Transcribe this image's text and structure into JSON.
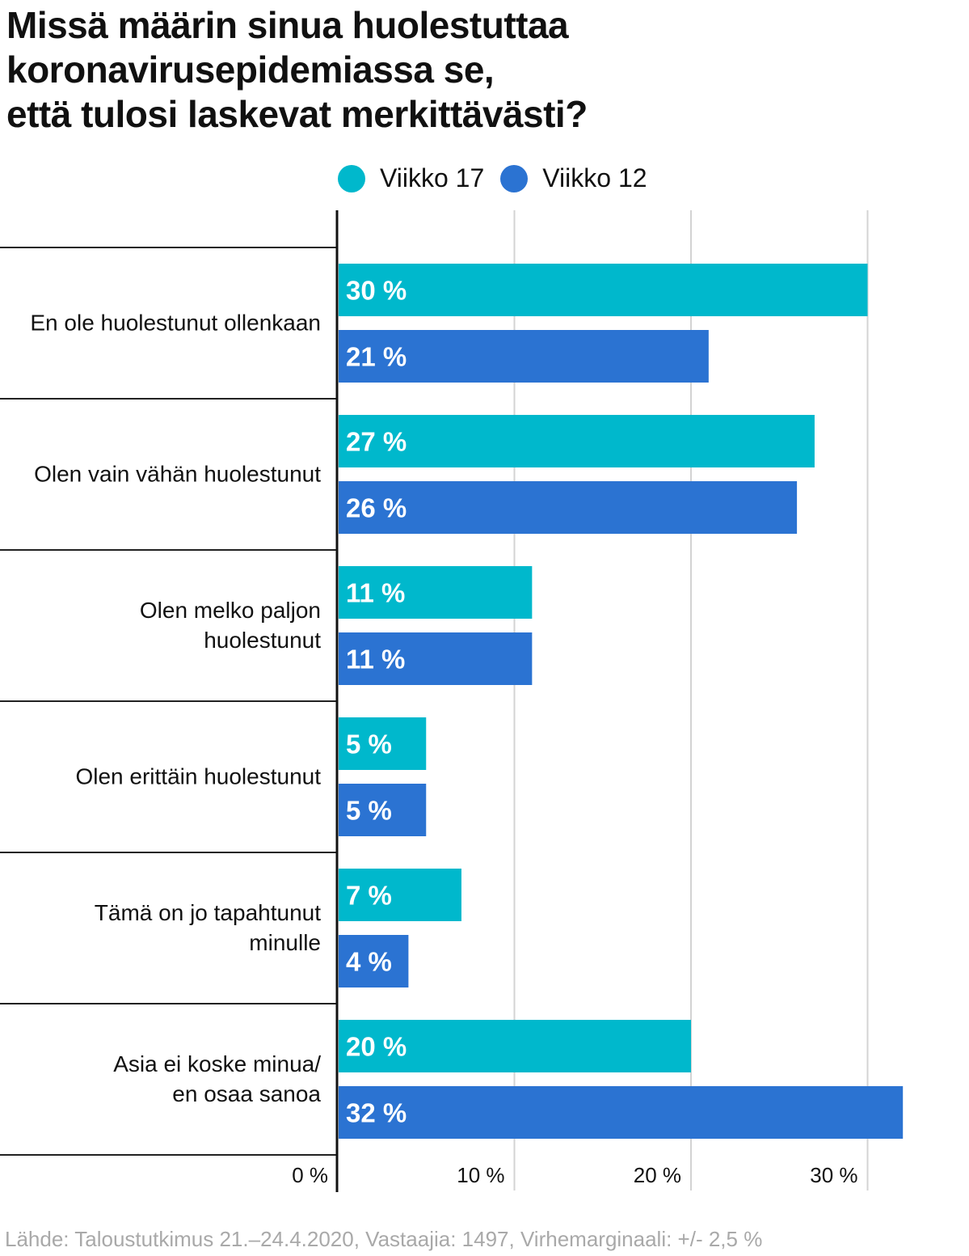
{
  "title_lines": [
    "Missä määrin sinua huolestuttaa",
    "koronavirusepidemiassa se,",
    "että tulosi laskevat merkittävästi?"
  ],
  "source": "Lähde: Taloustutkimus 21.–24.4.2020, Vastaajia: 1497, Virhemarginaali: +/- 2,5 %",
  "colors": {
    "viikko17": "#00b8cc",
    "viikko12": "#2b73d2",
    "grid": "#d3d3d3",
    "axis": "#111111",
    "separator": "#222222"
  },
  "chart_data": {
    "type": "bar",
    "orientation": "horizontal",
    "title": "Missä määrin sinua huolestuttaa koronavirusepidemiassa se, että tulosi laskevat merkittävästi?",
    "categories": [
      [
        "En ole huolestunut ollenkaan"
      ],
      [
        "Olen vain vähän huolestunut"
      ],
      [
        "Olen melko paljon",
        "huolestunut"
      ],
      [
        "Olen erittäin huolestunut"
      ],
      [
        "Tämä on jo tapahtunut",
        "minulle"
      ],
      [
        "Asia ei koske minua/",
        "en osaa sanoa"
      ]
    ],
    "series": [
      {
        "name": "Viikko 17",
        "values": [
          30,
          27,
          11,
          5,
          7,
          20
        ],
        "labels": [
          "30 %",
          "27 %",
          "11 %",
          "5 %",
          "7 %",
          "20 %"
        ]
      },
      {
        "name": "Viikko 12",
        "values": [
          21,
          26,
          11,
          5,
          4,
          32
        ],
        "labels": [
          "21 %",
          "26 %",
          "11 %",
          "5 %",
          "4 %",
          "32 %"
        ]
      }
    ],
    "xlim": [
      0,
      35
    ],
    "xticks": [
      0,
      10,
      20,
      30
    ],
    "xtick_labels": [
      "0 %",
      "10 %",
      "20 %",
      "30 %"
    ],
    "grid": true,
    "legend_position": "top"
  }
}
